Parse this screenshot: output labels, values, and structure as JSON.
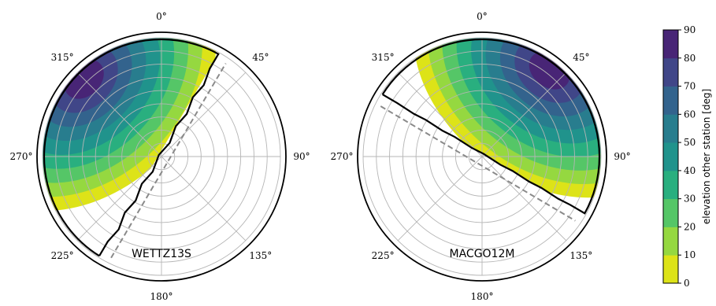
{
  "chart_data": [
    {
      "type": "polar-filled-contour",
      "station": "WETTZ13S",
      "angle_ticks": [
        "0°",
        "45°",
        "90°",
        "135°",
        "180°",
        "225°",
        "270°",
        "315°"
      ],
      "radial_grid_rings": 9,
      "visible_sector_deg": [
        212,
        29
      ],
      "max_elevation_direction_deg": 315,
      "max_elevation_band": [
        80,
        90
      ],
      "horizon_outline": "solid black",
      "projected_horizon": "dashed gray"
    },
    {
      "type": "polar-filled-contour",
      "station": "MACGO12M",
      "angle_ticks": [
        "0°",
        "45°",
        "90°",
        "135°",
        "180°",
        "225°",
        "270°",
        "315°"
      ],
      "radial_grid_rings": 9,
      "visible_sector_deg": [
        302,
        119
      ],
      "max_elevation_direction_deg": 38,
      "max_elevation_band": [
        80,
        90
      ],
      "horizon_outline": "solid black",
      "projected_horizon": "dashed gray"
    }
  ],
  "colorbar": {
    "label": "elevation other station [deg]",
    "ticks": [
      "0",
      "10",
      "20",
      "30",
      "40",
      "50",
      "60",
      "70",
      "80",
      "90"
    ],
    "levels": [
      0,
      10,
      20,
      30,
      40,
      50,
      60,
      70,
      80,
      90
    ],
    "colors": [
      "#dde318",
      "#95d840",
      "#55c667",
      "#29af7f",
      "#20938c",
      "#287d8e",
      "#33638d",
      "#404688",
      "#482576"
    ]
  }
}
